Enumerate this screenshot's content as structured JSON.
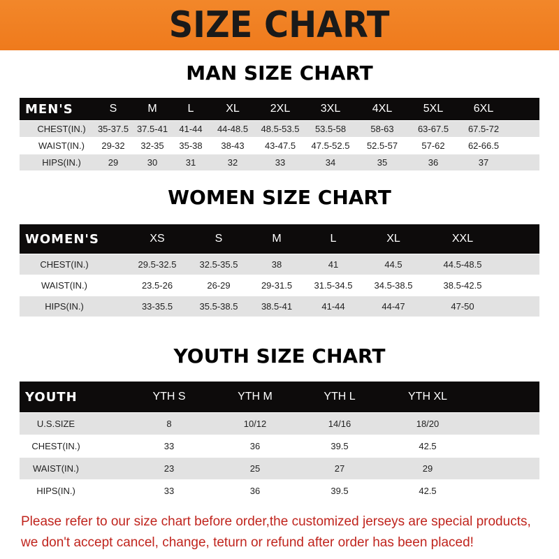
{
  "banner": {
    "title": "SIZE CHART",
    "color": "#f0801f"
  },
  "men": {
    "title": "MAN SIZE CHART",
    "header": [
      "MEN'S",
      "S",
      "M",
      "L",
      "XL",
      "2XL",
      "3XL",
      "4XL",
      "5XL",
      "6XL"
    ],
    "rows": [
      [
        "CHEST(IN.)",
        "35-37.5",
        "37.5-41",
        "41-44",
        "44-48.5",
        "48.5-53.5",
        "53.5-58",
        "58-63",
        "63-67.5",
        "67.5-72"
      ],
      [
        "WAIST(IN.)",
        "29-32",
        "32-35",
        "35-38",
        "38-43",
        "43-47.5",
        "47.5-52.5",
        "52.5-57",
        "57-62",
        "62-66.5"
      ],
      [
        "HIPS(IN.)",
        "29",
        "30",
        "31",
        "32",
        "33",
        "34",
        "35",
        "36",
        "37"
      ]
    ]
  },
  "women": {
    "title": "WOMEN SIZE CHART",
    "header": [
      "WOMEN'S",
      "XS",
      "S",
      "M",
      "L",
      "XL",
      "XXL"
    ],
    "rows": [
      [
        "CHEST(IN.)",
        "29.5-32.5",
        "32.5-35.5",
        "38",
        "41",
        "44.5",
        "44.5-48.5"
      ],
      [
        "WAIST(IN.)",
        "23.5-26",
        "26-29",
        "29-31.5",
        "31.5-34.5",
        "34.5-38.5",
        "38.5-42.5"
      ],
      [
        "HIPS(IN.)",
        "33-35.5",
        "35.5-38.5",
        "38.5-41",
        "41-44",
        "44-47",
        "47-50"
      ]
    ]
  },
  "youth": {
    "title": "YOUTH SIZE CHART",
    "header": [
      "YOUTH",
      "YTH S",
      "YTH M",
      "YTH L",
      "YTH XL"
    ],
    "rows": [
      [
        "U.S.SIZE",
        "8",
        "10/12",
        "14/16",
        "18/20"
      ],
      [
        "CHEST(IN.)",
        "33",
        "36",
        "39.5",
        "42.5"
      ],
      [
        "WAIST(IN.)",
        "23",
        "25",
        "27",
        "29"
      ],
      [
        "HIPS(IN.)",
        "33",
        "36",
        "39.5",
        "42.5"
      ]
    ]
  },
  "note": {
    "line1": "Please refer to our size chart before order,the customized jerseys are special products,",
    "line2": "we don't accept cancel, change, teturn or refund after order has been placed!",
    "color": "#c0241d"
  }
}
